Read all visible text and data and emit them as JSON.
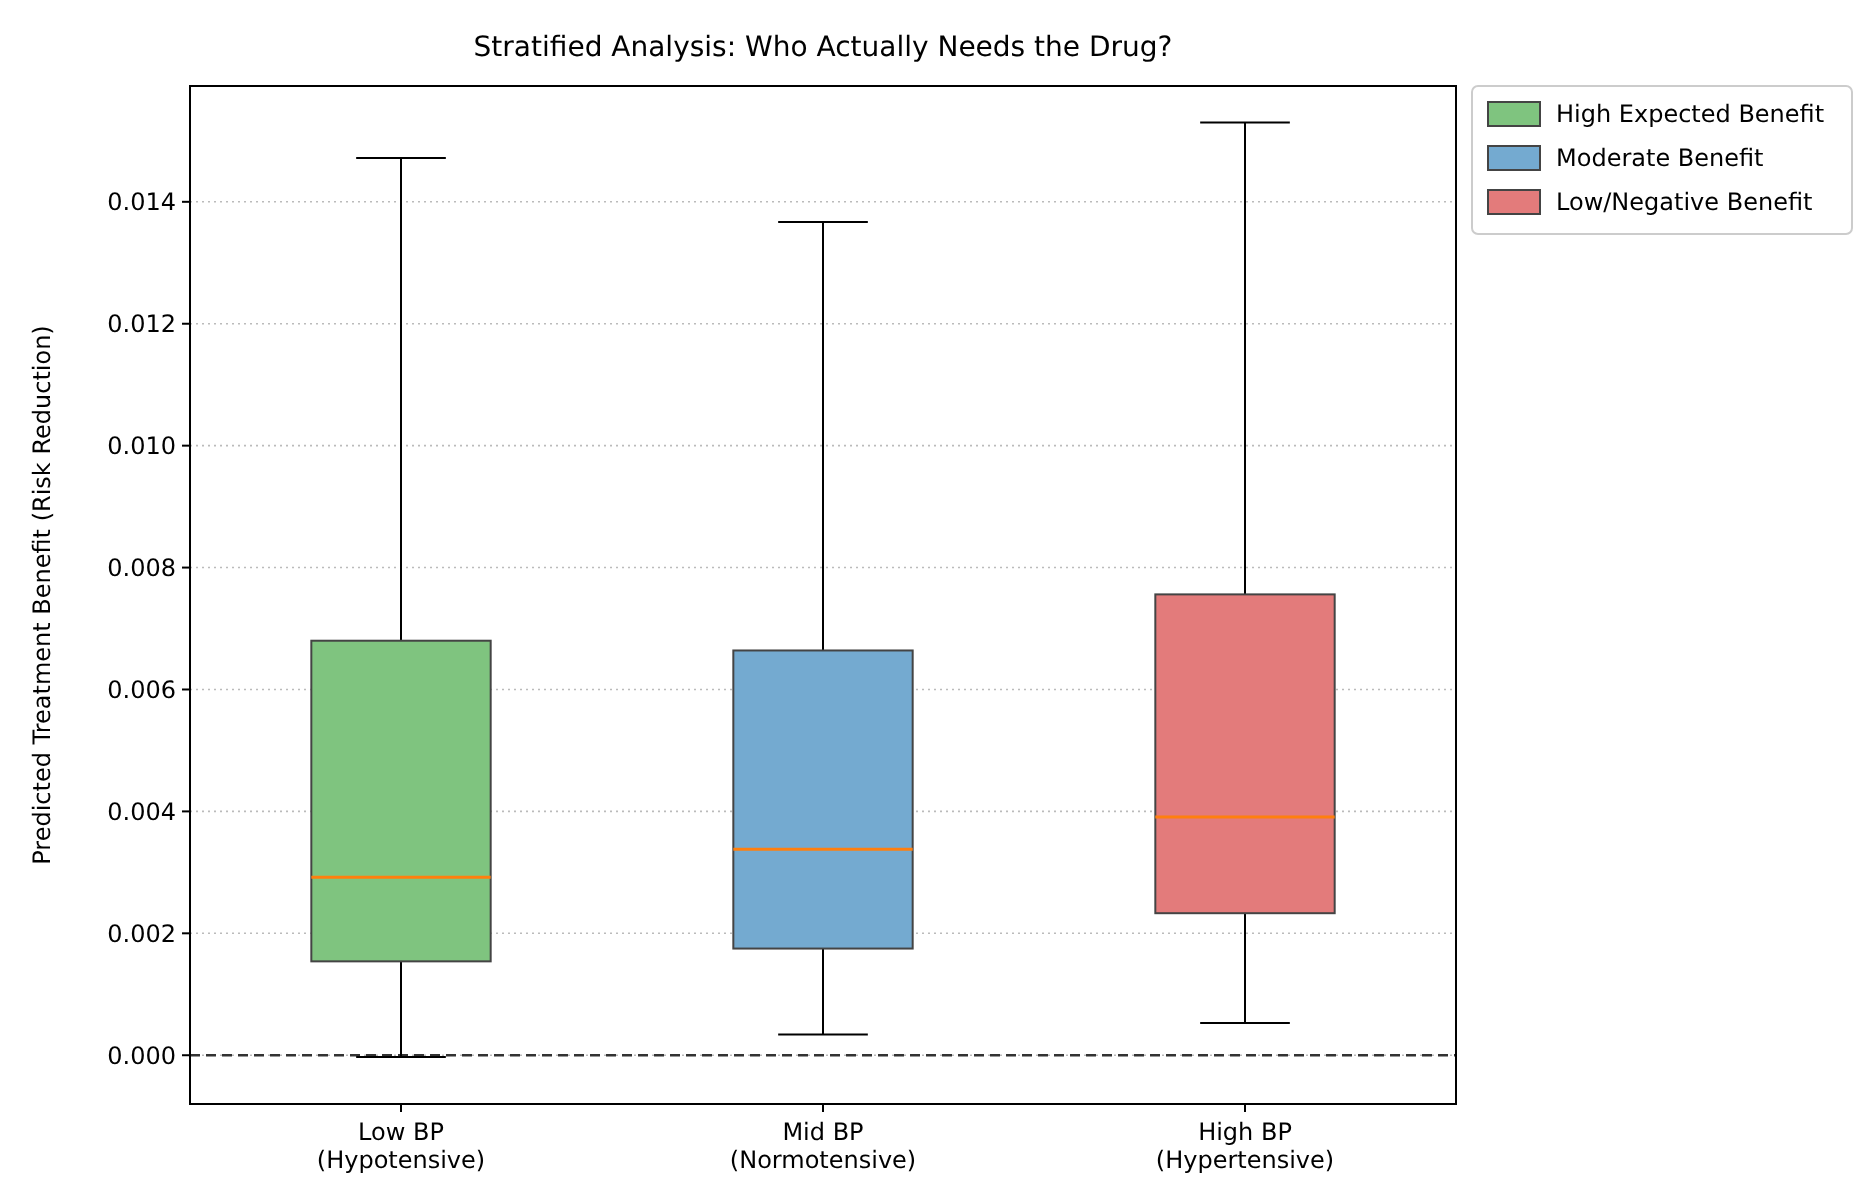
{
  "chart_data": {
    "type": "box",
    "title": "Stratified Analysis: Who Actually Needs the Drug?",
    "ylabel": "Predicted Treatment Benefit (Risk Reduction)",
    "categories": [
      "Low BP\n(Hypotensive)",
      "Mid BP\n(Normotensive)",
      "High BP\n(Hypertensive)"
    ],
    "series": [
      {
        "name": "High Expected Benefit",
        "color": "#7fc47f",
        "boxes": [
          {
            "low": -3e-05,
            "q1": 0.00154,
            "median": 0.00292,
            "q3": 0.0068,
            "high": 0.01472
          },
          null,
          null
        ]
      },
      {
        "name": "Moderate Benefit",
        "color": "#74aad0",
        "boxes": [
          null,
          {
            "low": 0.00034,
            "q1": 0.00175,
            "median": 0.00338,
            "q3": 0.00664,
            "high": 0.01367
          },
          null
        ]
      },
      {
        "name": "Low/Negative Benefit",
        "color": "#e37b7b",
        "boxes": [
          null,
          null,
          {
            "low": 0.00053,
            "q1": 0.00233,
            "median": 0.00391,
            "q3": 0.00756,
            "high": 0.0153
          }
        ]
      }
    ],
    "ylim": [
      -0.0008,
      0.0159
    ],
    "yticks": [
      {
        "value": 0,
        "label": "0.000"
      },
      {
        "value": 0.002,
        "label": "0.002"
      },
      {
        "value": 0.004,
        "label": "0.004"
      },
      {
        "value": 0.006,
        "label": "0.006"
      },
      {
        "value": 0.008,
        "label": "0.008"
      },
      {
        "value": 0.01,
        "label": "0.010"
      },
      {
        "value": 0.012,
        "label": "0.012"
      },
      {
        "value": 0.014,
        "label": "0.014"
      }
    ],
    "grid": "y",
    "legend": "right",
    "ref_lines": [
      {
        "axis": "y",
        "value": 0,
        "line_style": "dashed",
        "color": "#333333"
      }
    ]
  }
}
